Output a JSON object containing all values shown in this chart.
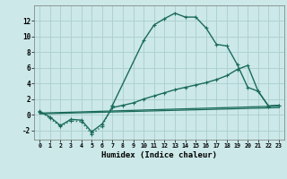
{
  "background_color": "#cce8e8",
  "grid_color": "#aacece",
  "line_color": "#1a6b5a",
  "xlim": [
    -0.5,
    23.5
  ],
  "ylim": [
    -3.2,
    14.0
  ],
  "ytick_values": [
    -2,
    0,
    2,
    4,
    6,
    8,
    10,
    12
  ],
  "xlabel": "Humidex (Indice chaleur)",
  "line1_x": [
    0,
    1,
    2,
    3,
    4,
    5,
    6,
    7,
    10,
    11,
    12,
    13,
    14,
    15,
    16,
    17,
    18,
    19,
    20,
    21,
    22,
    23
  ],
  "line1_y": [
    0.5,
    -0.5,
    -1.5,
    -0.8,
    -0.9,
    -2.5,
    -1.5,
    1.2,
    9.5,
    11.5,
    12.3,
    13.0,
    12.5,
    12.5,
    11.1,
    9.0,
    8.8,
    6.4,
    3.5,
    3.0,
    1.1,
    1.2
  ],
  "line1_dotted_end": 8,
  "line2_x": [
    0,
    1,
    2,
    3,
    4,
    5,
    6,
    7,
    8,
    9,
    10,
    11,
    12,
    13,
    14,
    15,
    16,
    17,
    18,
    19,
    20,
    21,
    22,
    23
  ],
  "line2_y": [
    0.4,
    -0.3,
    -1.4,
    -0.6,
    -0.7,
    -2.2,
    -1.2,
    0.9,
    1.2,
    1.5,
    2.0,
    2.4,
    2.8,
    3.2,
    3.5,
    3.8,
    4.1,
    4.5,
    5.0,
    5.8,
    6.3,
    3.0,
    1.1,
    1.2
  ],
  "line3_x": [
    0,
    23
  ],
  "line3_y": [
    0.2,
    1.1
  ],
  "line4_x": [
    0,
    23
  ],
  "line4_y": [
    0.1,
    0.9
  ],
  "figwidth": 3.2,
  "figheight": 2.0,
  "dpi": 100
}
